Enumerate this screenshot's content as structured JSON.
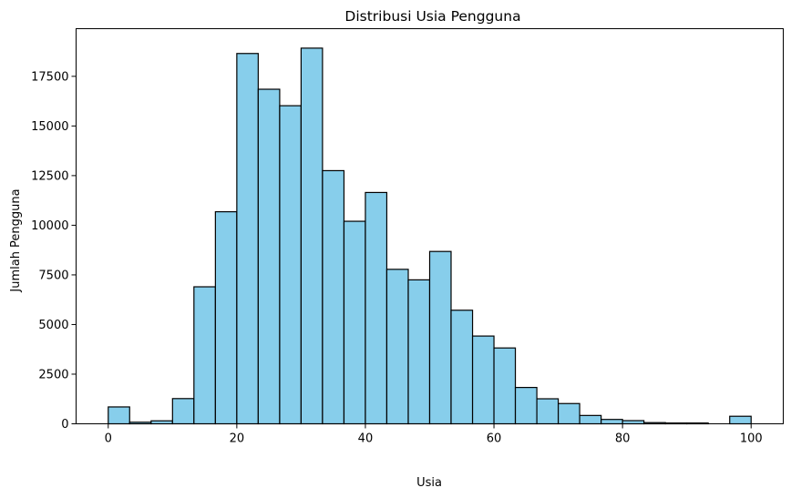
{
  "chart_data": {
    "type": "bar",
    "title": "Distribusi Usia Pengguna",
    "xlabel": "Usia",
    "ylabel": "Jumlah Pengguna",
    "bin_edges": [
      0,
      3.33,
      6.67,
      10,
      13.33,
      16.67,
      20,
      23.33,
      26.67,
      30,
      33.33,
      36.67,
      40,
      43.33,
      46.67,
      50,
      53.33,
      56.67,
      60,
      63.33,
      66.67,
      70,
      73.33,
      76.67,
      80,
      83.33,
      86.67,
      90,
      93.33,
      96.67,
      100
    ],
    "values": [
      850,
      80,
      150,
      1270,
      6900,
      10680,
      18650,
      16850,
      16020,
      18920,
      12750,
      10200,
      11650,
      7780,
      7250,
      8680,
      5720,
      4420,
      3820,
      1830,
      1260,
      1020,
      420,
      220,
      160,
      60,
      40,
      40,
      0,
      380
    ],
    "xlim": [
      -5,
      105
    ],
    "ylim": [
      0,
      19900
    ],
    "xticks": [
      "0",
      "20",
      "40",
      "60",
      "80",
      "100"
    ],
    "yticks": [
      "0",
      "2500",
      "5000",
      "7500",
      "10000",
      "12500",
      "15000",
      "17500"
    ],
    "grid": false,
    "bar_color": "#87ceeb",
    "edge_color": "#000000"
  }
}
